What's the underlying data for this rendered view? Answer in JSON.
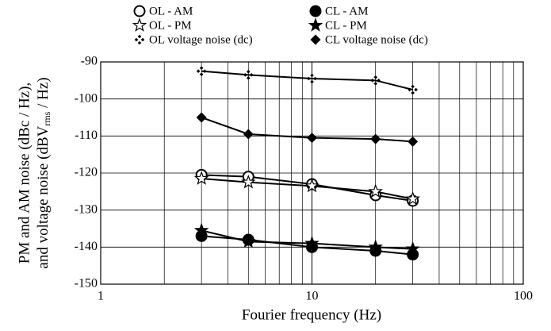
{
  "chart_data": {
    "type": "line",
    "xlabel": "Fourier frequency (Hz)",
    "ylabel": [
      "PM and AM noise (dBc / Hz),",
      "and voltage noise (dBV",
      "rms",
      " / Hz)"
    ],
    "x": [
      3,
      5,
      10,
      20,
      30
    ],
    "xlim": [
      1,
      100
    ],
    "xticks": [
      1,
      10,
      100
    ],
    "xscale": "log",
    "ylim": [
      -150,
      -90
    ],
    "yticks": [
      -150,
      -140,
      -130,
      -120,
      -110,
      -100,
      -90
    ],
    "grid": true,
    "legend": "top",
    "series": [
      {
        "name": "OL - AM",
        "color": "#000000",
        "marker": "circle-open",
        "values": [
          -120.5,
          -121,
          -123,
          -126,
          -127.5
        ]
      },
      {
        "name": "CL - AM",
        "color": "#000000",
        "marker": "circle",
        "values": [
          -137,
          -138,
          -140,
          -141,
          -142
        ]
      },
      {
        "name": "OL - PM",
        "color": "#000000",
        "marker": "star-open",
        "values": [
          -121.5,
          -122.5,
          -123.5,
          -125,
          -127
        ]
      },
      {
        "name": "CL - PM",
        "color": "#000000",
        "marker": "star",
        "values": [
          -135.5,
          -138.5,
          -139,
          -140,
          -140.5
        ]
      },
      {
        "name": "OL voltage noise (dc)",
        "color": "#000000",
        "marker": "cross-dots",
        "values": [
          -92.5,
          -93.5,
          -94.5,
          -95,
          -97.5
        ]
      },
      {
        "name": "CL voltage noise (dc)",
        "color": "#000000",
        "marker": "diamond",
        "values": [
          -105,
          -109.5,
          -110.5,
          -110.8,
          -111.5
        ]
      }
    ]
  }
}
